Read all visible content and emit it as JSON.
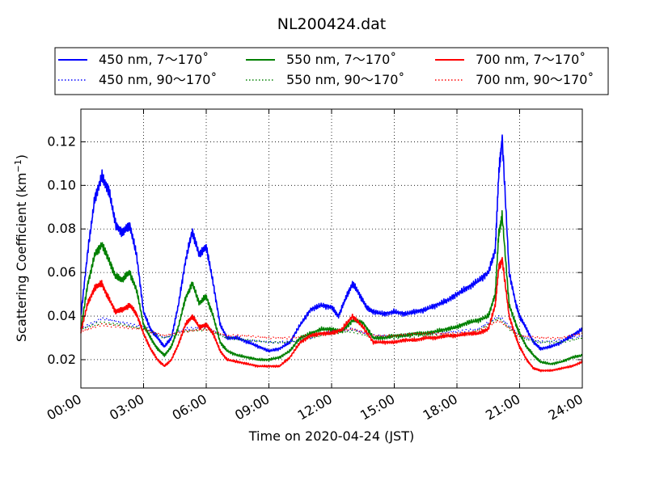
{
  "chart_data": {
    "type": "line",
    "title": "NL200424.dat",
    "xlabel": "Time on 2020-04-24 (JST)",
    "ylabel_main": "Scattering Coefficient (km",
    "ylabel_exp": "−1",
    "ylabel_close": ")",
    "xlim": [
      "00:00",
      "24:00"
    ],
    "ylim": [
      0.007,
      0.135
    ],
    "grid": true,
    "legend_position": "top",
    "x_ticks": [
      "00:00",
      "03:00",
      "06:00",
      "09:00",
      "12:00",
      "15:00",
      "18:00",
      "21:00",
      "24:00"
    ],
    "y_ticks": [
      "0.02",
      "0.04",
      "0.06",
      "0.08",
      "0.10",
      "0.12"
    ],
    "series": [
      {
        "name": "450 nm, 7～170˚",
        "color": "#0000ff",
        "style": "solid",
        "x": [
          "00:00",
          "00:20",
          "00:40",
          "01:00",
          "01:20",
          "01:40",
          "02:00",
          "02:20",
          "02:40",
          "03:00",
          "03:20",
          "03:40",
          "04:00",
          "04:20",
          "04:40",
          "05:00",
          "05:20",
          "05:40",
          "06:00",
          "06:20",
          "06:40",
          "07:00",
          "07:30",
          "08:00",
          "08:30",
          "09:00",
          "09:30",
          "10:00",
          "10:30",
          "11:00",
          "11:30",
          "12:00",
          "12:20",
          "12:40",
          "13:00",
          "13:20",
          "13:40",
          "14:00",
          "14:30",
          "15:00",
          "15:30",
          "16:00",
          "16:30",
          "17:00",
          "17:30",
          "18:00",
          "18:30",
          "19:00",
          "19:30",
          "19:50",
          "20:00",
          "20:10",
          "20:30",
          "20:50",
          "21:00",
          "21:20",
          "21:40",
          "22:00",
          "22:30",
          "23:00",
          "23:30",
          "24:00"
        ],
        "y": [
          0.04,
          0.07,
          0.094,
          0.104,
          0.098,
          0.082,
          0.078,
          0.082,
          0.068,
          0.042,
          0.034,
          0.03,
          0.026,
          0.03,
          0.045,
          0.065,
          0.079,
          0.068,
          0.072,
          0.055,
          0.036,
          0.03,
          0.03,
          0.028,
          0.026,
          0.024,
          0.025,
          0.028,
          0.036,
          0.043,
          0.045,
          0.044,
          0.04,
          0.048,
          0.055,
          0.05,
          0.044,
          0.042,
          0.041,
          0.042,
          0.041,
          0.042,
          0.043,
          0.045,
          0.047,
          0.05,
          0.053,
          0.056,
          0.06,
          0.07,
          0.105,
          0.122,
          0.06,
          0.045,
          0.04,
          0.034,
          0.028,
          0.025,
          0.026,
          0.028,
          0.031,
          0.034
        ]
      },
      {
        "name": "450 nm, 90～170˚",
        "color": "#0000ff",
        "style": "dotted",
        "x": [
          "00:00",
          "01:00",
          "02:00",
          "03:00",
          "04:00",
          "05:00",
          "06:00",
          "07:00",
          "08:00",
          "09:00",
          "10:00",
          "11:00",
          "12:00",
          "13:00",
          "14:00",
          "15:00",
          "16:00",
          "17:00",
          "18:00",
          "19:00",
          "20:00",
          "21:00",
          "22:00",
          "23:00",
          "24:00"
        ],
        "y": [
          0.034,
          0.039,
          0.037,
          0.035,
          0.03,
          0.034,
          0.035,
          0.03,
          0.029,
          0.028,
          0.028,
          0.03,
          0.033,
          0.034,
          0.031,
          0.031,
          0.032,
          0.032,
          0.033,
          0.034,
          0.04,
          0.031,
          0.028,
          0.029,
          0.031
        ]
      },
      {
        "name": "550 nm, 7～170˚",
        "color": "#008000",
        "style": "solid",
        "x": [
          "00:00",
          "00:20",
          "00:40",
          "01:00",
          "01:20",
          "01:40",
          "02:00",
          "02:20",
          "02:40",
          "03:00",
          "03:20",
          "03:40",
          "04:00",
          "04:20",
          "04:40",
          "05:00",
          "05:20",
          "05:40",
          "06:00",
          "06:20",
          "06:40",
          "07:00",
          "07:30",
          "08:00",
          "08:30",
          "09:00",
          "09:30",
          "10:00",
          "10:30",
          "11:00",
          "11:30",
          "12:00",
          "12:30",
          "13:00",
          "13:30",
          "14:00",
          "14:30",
          "15:00",
          "15:30",
          "16:00",
          "16:30",
          "17:00",
          "17:30",
          "18:00",
          "18:30",
          "19:00",
          "19:30",
          "19:50",
          "20:00",
          "20:10",
          "20:30",
          "20:50",
          "21:00",
          "21:20",
          "21:40",
          "22:00",
          "22:30",
          "23:00",
          "23:30",
          "24:00"
        ],
        "y": [
          0.034,
          0.055,
          0.068,
          0.073,
          0.066,
          0.058,
          0.057,
          0.06,
          0.052,
          0.036,
          0.03,
          0.025,
          0.022,
          0.026,
          0.035,
          0.048,
          0.055,
          0.046,
          0.049,
          0.04,
          0.028,
          0.024,
          0.022,
          0.021,
          0.02,
          0.02,
          0.021,
          0.024,
          0.03,
          0.032,
          0.034,
          0.034,
          0.033,
          0.038,
          0.037,
          0.03,
          0.03,
          0.031,
          0.031,
          0.032,
          0.032,
          0.033,
          0.034,
          0.035,
          0.037,
          0.038,
          0.04,
          0.05,
          0.078,
          0.086,
          0.045,
          0.036,
          0.032,
          0.026,
          0.022,
          0.019,
          0.018,
          0.019,
          0.021,
          0.022
        ]
      },
      {
        "name": "550 nm, 90～170˚",
        "color": "#008000",
        "style": "dotted",
        "x": [
          "00:00",
          "01:00",
          "02:00",
          "03:00",
          "04:00",
          "05:00",
          "06:00",
          "07:00",
          "08:00",
          "09:00",
          "10:00",
          "11:00",
          "12:00",
          "13:00",
          "14:00",
          "15:00",
          "16:00",
          "17:00",
          "18:00",
          "19:00",
          "20:00",
          "21:00",
          "22:00",
          "23:00",
          "24:00"
        ],
        "y": [
          0.034,
          0.037,
          0.036,
          0.034,
          0.03,
          0.033,
          0.034,
          0.03,
          0.029,
          0.028,
          0.028,
          0.03,
          0.032,
          0.033,
          0.03,
          0.03,
          0.031,
          0.031,
          0.031,
          0.033,
          0.039,
          0.03,
          0.028,
          0.028,
          0.03
        ]
      },
      {
        "name": "700 nm, 7～170˚",
        "color": "#ff0000",
        "style": "solid",
        "x": [
          "00:00",
          "00:20",
          "00:40",
          "01:00",
          "01:20",
          "01:40",
          "02:00",
          "02:20",
          "02:40",
          "03:00",
          "03:20",
          "03:40",
          "04:00",
          "04:20",
          "04:40",
          "05:00",
          "05:20",
          "05:40",
          "06:00",
          "06:20",
          "06:40",
          "07:00",
          "07:30",
          "08:00",
          "08:30",
          "09:00",
          "09:30",
          "10:00",
          "10:30",
          "11:00",
          "11:30",
          "12:00",
          "12:30",
          "13:00",
          "13:30",
          "14:00",
          "14:30",
          "15:00",
          "15:30",
          "16:00",
          "16:30",
          "17:00",
          "17:30",
          "18:00",
          "18:30",
          "19:00",
          "19:30",
          "19:50",
          "20:00",
          "20:10",
          "20:30",
          "20:50",
          "21:00",
          "21:20",
          "21:40",
          "22:00",
          "22:30",
          "23:00",
          "23:30",
          "24:00"
        ],
        "y": [
          0.033,
          0.046,
          0.053,
          0.055,
          0.048,
          0.042,
          0.043,
          0.045,
          0.041,
          0.032,
          0.025,
          0.02,
          0.017,
          0.02,
          0.027,
          0.036,
          0.04,
          0.035,
          0.036,
          0.032,
          0.024,
          0.02,
          0.019,
          0.018,
          0.017,
          0.017,
          0.017,
          0.021,
          0.028,
          0.031,
          0.032,
          0.032,
          0.034,
          0.04,
          0.035,
          0.028,
          0.028,
          0.028,
          0.029,
          0.029,
          0.03,
          0.03,
          0.031,
          0.031,
          0.032,
          0.032,
          0.034,
          0.045,
          0.062,
          0.066,
          0.04,
          0.03,
          0.026,
          0.02,
          0.016,
          0.015,
          0.015,
          0.016,
          0.017,
          0.019
        ]
      },
      {
        "name": "700 nm, 90～170˚",
        "color": "#ff0000",
        "style": "dotted",
        "x": [
          "00:00",
          "01:00",
          "02:00",
          "03:00",
          "04:00",
          "05:00",
          "06:00",
          "07:00",
          "08:00",
          "09:00",
          "10:00",
          "11:00",
          "12:00",
          "13:00",
          "14:00",
          "15:00",
          "16:00",
          "17:00",
          "18:00",
          "19:00",
          "20:00",
          "21:00",
          "22:00",
          "23:00",
          "24:00"
        ],
        "y": [
          0.033,
          0.036,
          0.035,
          0.034,
          0.031,
          0.033,
          0.034,
          0.031,
          0.031,
          0.03,
          0.03,
          0.031,
          0.033,
          0.034,
          0.031,
          0.031,
          0.032,
          0.032,
          0.032,
          0.033,
          0.038,
          0.031,
          0.03,
          0.03,
          0.032
        ]
      }
    ]
  }
}
